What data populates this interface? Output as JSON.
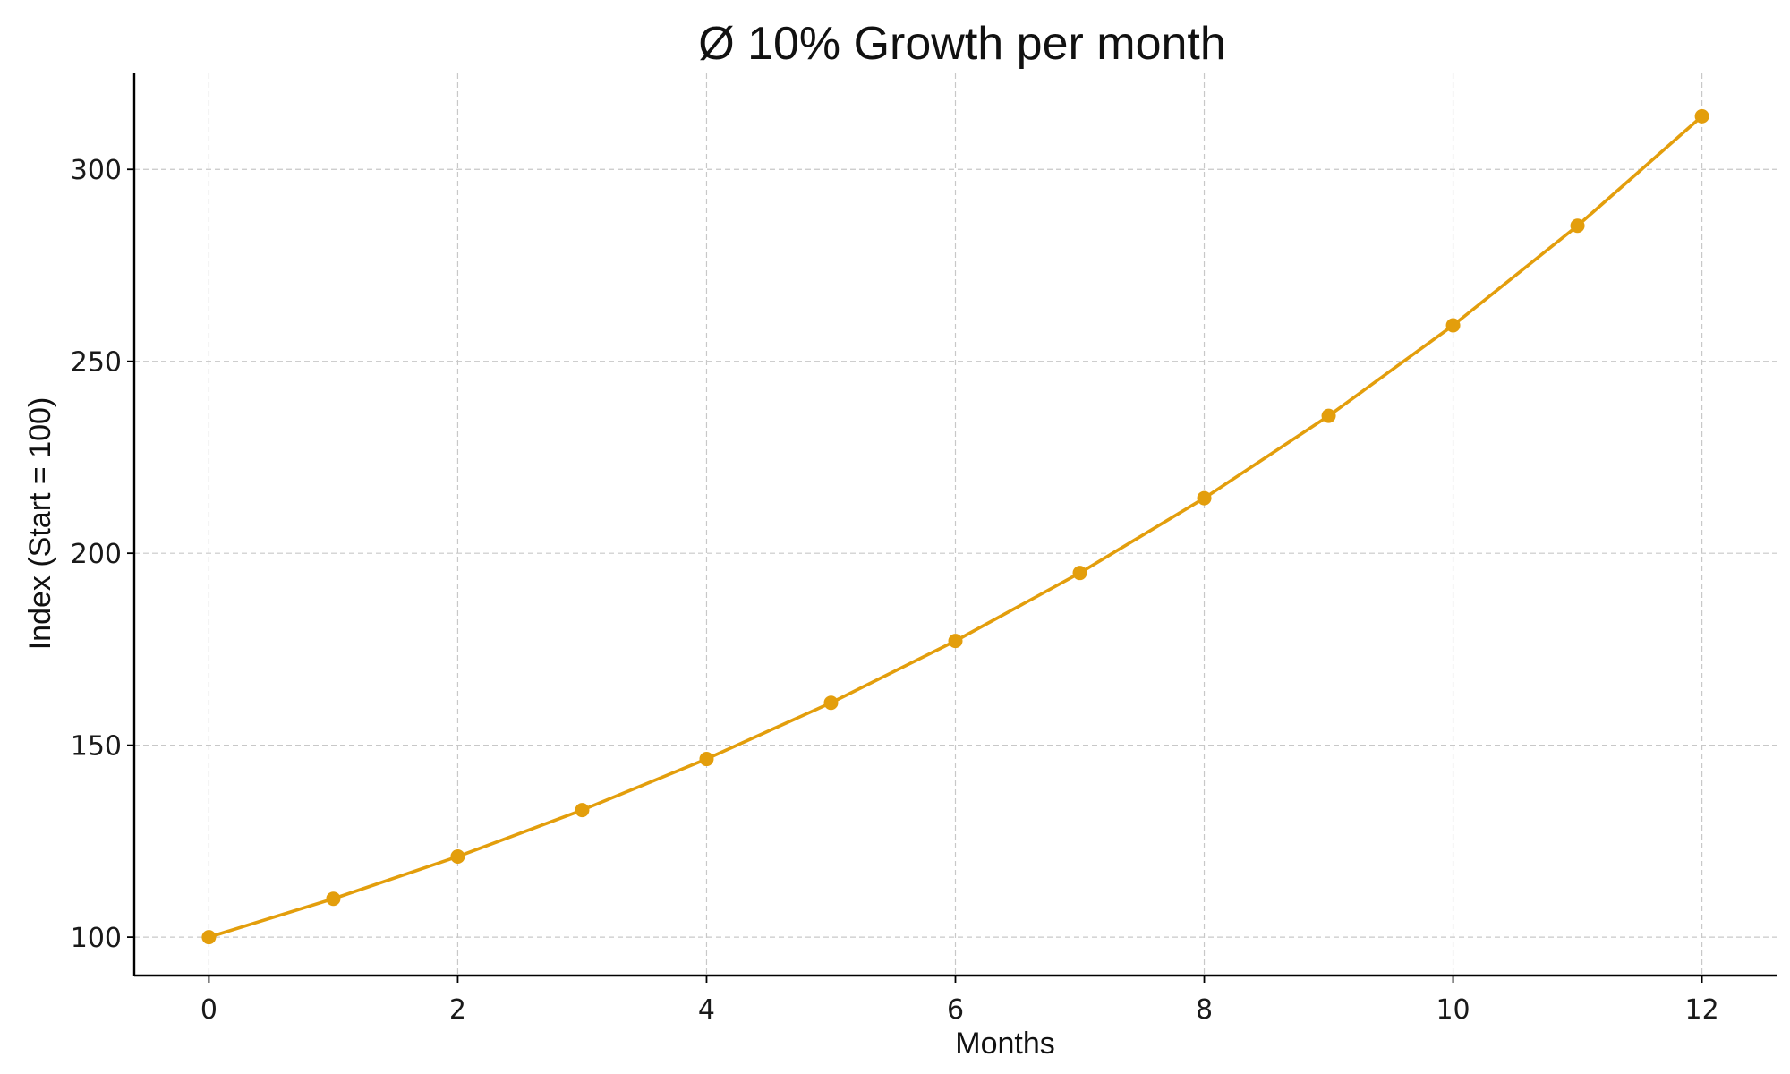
{
  "chart_data": {
    "type": "line",
    "title": "Ø 10% Growth per month",
    "xlabel": "Months",
    "ylabel": "Index (Start = 100)",
    "x": [
      0,
      1,
      2,
      3,
      4,
      5,
      6,
      7,
      8,
      9,
      10,
      11,
      12
    ],
    "series": [
      {
        "values": [
          100,
          110,
          121,
          133.1,
          146.41,
          161.05,
          177.16,
          194.87,
          214.36,
          235.79,
          259.37,
          285.31,
          313.84
        ]
      }
    ],
    "xticks": [
      "0",
      "2",
      "4",
      "6",
      "8",
      "10",
      "12"
    ],
    "yticks": [
      "100",
      "150",
      "200",
      "250",
      "300"
    ],
    "xlim": [
      -0.6,
      12.6
    ],
    "ylim": [
      90,
      325
    ],
    "grid": true,
    "line_color": "#E39E0C",
    "axis_color": "#000000",
    "grid_color": "#c8c8c8"
  }
}
